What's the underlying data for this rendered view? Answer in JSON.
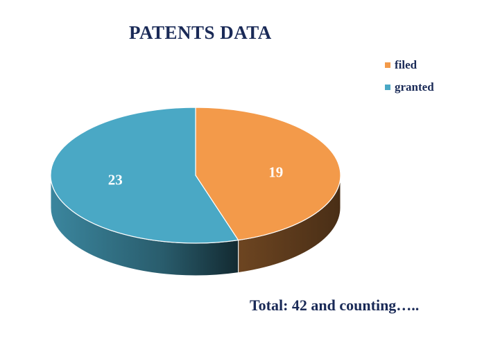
{
  "chart_data": {
    "type": "pie",
    "title": "PATENTS DATA",
    "categories": [
      "filed",
      "granted"
    ],
    "values": [
      19,
      23
    ],
    "colors": [
      "#f39a4a",
      "#4aa8c5"
    ],
    "legend_position": "top-right",
    "three_d": true
  },
  "footer": {
    "text": "Total: 42 and counting….."
  }
}
